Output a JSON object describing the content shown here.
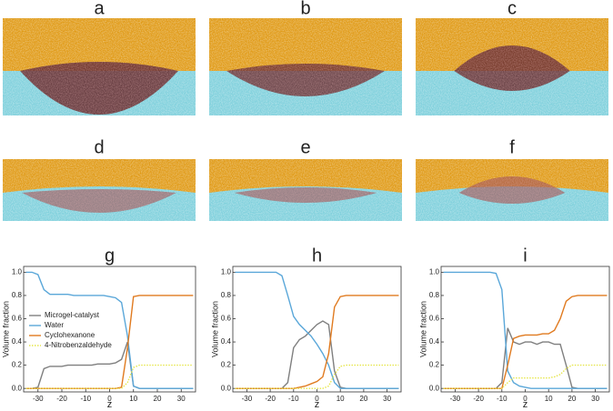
{
  "panels": {
    "labels": [
      "a",
      "b",
      "c",
      "d",
      "e",
      "f"
    ]
  },
  "chart_data": [
    {
      "type": "line",
      "title": "g",
      "xlabel": "z",
      "ylabel": "Volume fraction",
      "legend": "lower left",
      "x": [
        -35,
        -32.5,
        -30,
        -27.5,
        -25,
        -22.5,
        -20,
        -17.5,
        -15,
        -12.5,
        -10,
        -7.5,
        -5,
        -2.5,
        0,
        2.5,
        5,
        7.5,
        10,
        12.5,
        15,
        17.5,
        20,
        22.5,
        25,
        27.5,
        30,
        32.5,
        35
      ],
      "xlim": [
        -36,
        36
      ],
      "xticks": [
        -30,
        -20,
        -10,
        0,
        10,
        20,
        30
      ],
      "ylim": [
        -0.03,
        1.05
      ],
      "yticks": [
        {
          "value": 0,
          "label": "0.0"
        },
        0.2,
        0.4,
        0.6,
        0.8,
        {
          "value": 1,
          "label": "1.0"
        }
      ],
      "series": [
        {
          "name": "Microgel-catalyst",
          "color": "#7f7f7f",
          "style": "solid",
          "values": [
            0,
            0,
            0.01,
            0.17,
            0.19,
            0.19,
            0.19,
            0.2,
            0.2,
            0.2,
            0.2,
            0.2,
            0.21,
            0.21,
            0.21,
            0.22,
            0.25,
            0.4,
            0.02,
            0,
            0,
            0,
            0,
            0,
            0,
            0,
            0,
            0,
            0
          ]
        },
        {
          "name": "Water",
          "color": "#5aa7d9",
          "style": "solid",
          "values": [
            1,
            1,
            0.98,
            0.85,
            0.81,
            0.81,
            0.81,
            0.81,
            0.8,
            0.8,
            0.8,
            0.8,
            0.8,
            0.8,
            0.79,
            0.78,
            0.74,
            0.45,
            0.02,
            0,
            0,
            0,
            0,
            0,
            0,
            0,
            0,
            0,
            0
          ]
        },
        {
          "name": "Cyclohexanone",
          "color": "#e07a1f",
          "style": "solid",
          "values": [
            0,
            0,
            0,
            0,
            0,
            0,
            0,
            0,
            0,
            0,
            0,
            0,
            0,
            0,
            0,
            0,
            0.01,
            0.35,
            0.79,
            0.8,
            0.8,
            0.8,
            0.8,
            0.8,
            0.8,
            0.8,
            0.8,
            0.8,
            0.8
          ]
        },
        {
          "name": "4-Nitrobenzaldehyde",
          "color": "#e6e64a",
          "style": "dotted",
          "values": [
            0,
            0,
            0,
            0,
            0,
            0,
            0,
            0,
            0,
            0,
            0,
            0,
            0,
            0,
            0,
            0,
            0,
            0.05,
            0.18,
            0.2,
            0.2,
            0.2,
            0.2,
            0.2,
            0.2,
            0.2,
            0.2,
            0.2,
            0.2
          ]
        }
      ]
    },
    {
      "type": "line",
      "title": "h",
      "xlabel": "z",
      "ylabel": "Volume fraction",
      "x": [
        -35,
        -32.5,
        -30,
        -27.5,
        -25,
        -22.5,
        -20,
        -17.5,
        -15,
        -12.5,
        -10,
        -7.5,
        -5,
        -2.5,
        0,
        2.5,
        5,
        7.5,
        10,
        12.5,
        15,
        17.5,
        20,
        22.5,
        25,
        27.5,
        30,
        32.5,
        35
      ],
      "xlim": [
        -36,
        36
      ],
      "xticks": [
        -30,
        -20,
        -10,
        0,
        10,
        20,
        30
      ],
      "ylim": [
        -0.03,
        1.05
      ],
      "yticks": [
        {
          "value": 0,
          "label": "0.0"
        },
        0.2,
        0.4,
        0.6,
        0.8,
        {
          "value": 1,
          "label": "1.0"
        }
      ],
      "series": [
        {
          "color": "#7f7f7f",
          "style": "solid",
          "values": [
            0,
            0,
            0,
            0,
            0,
            0,
            0,
            0,
            0,
            0.05,
            0.35,
            0.42,
            0.45,
            0.5,
            0.55,
            0.58,
            0.55,
            0.15,
            0.01,
            0,
            0,
            0,
            0,
            0,
            0,
            0,
            0,
            0,
            0
          ]
        },
        {
          "color": "#5aa7d9",
          "style": "solid",
          "values": [
            1,
            1,
            1,
            1,
            1,
            1,
            1,
            1,
            0.97,
            0.8,
            0.62,
            0.55,
            0.5,
            0.45,
            0.38,
            0.3,
            0.2,
            0.05,
            0,
            0,
            0,
            0,
            0,
            0,
            0,
            0,
            0,
            0,
            0
          ]
        },
        {
          "color": "#e07a1f",
          "style": "solid",
          "values": [
            0,
            0,
            0,
            0,
            0,
            0,
            0,
            0,
            0,
            0,
            0,
            0.01,
            0.02,
            0.04,
            0.06,
            0.1,
            0.3,
            0.7,
            0.79,
            0.8,
            0.8,
            0.8,
            0.8,
            0.8,
            0.8,
            0.8,
            0.8,
            0.8,
            0.8
          ]
        },
        {
          "color": "#e6e64a",
          "style": "dotted",
          "values": [
            0,
            0,
            0,
            0,
            0,
            0,
            0,
            0,
            0,
            0,
            0,
            0,
            0,
            0,
            0,
            0,
            0.02,
            0.12,
            0.19,
            0.2,
            0.2,
            0.2,
            0.2,
            0.2,
            0.2,
            0.2,
            0.2,
            0.2,
            0.2
          ]
        }
      ]
    },
    {
      "type": "line",
      "title": "i",
      "xlabel": "z",
      "ylabel": "Volume fraction",
      "x": [
        -35,
        -32.5,
        -30,
        -27.5,
        -25,
        -22.5,
        -20,
        -17.5,
        -15,
        -12.5,
        -10,
        -7.5,
        -5,
        -2.5,
        0,
        2.5,
        5,
        7.5,
        10,
        12.5,
        15,
        17.5,
        20,
        22.5,
        25,
        27.5,
        30,
        32.5,
        35
      ],
      "xlim": [
        -36,
        36
      ],
      "xticks": [
        -30,
        -20,
        -10,
        0,
        10,
        20,
        30
      ],
      "ylim": [
        -0.03,
        1.05
      ],
      "yticks": [
        {
          "value": 0,
          "label": "0.0"
        },
        0.2,
        0.4,
        0.6,
        0.8,
        {
          "value": 1,
          "label": "1.0"
        }
      ],
      "series": [
        {
          "color": "#7f7f7f",
          "style": "solid",
          "values": [
            0,
            0,
            0,
            0,
            0,
            0,
            0,
            0,
            0,
            0,
            0.05,
            0.52,
            0.4,
            0.38,
            0.4,
            0.4,
            0.38,
            0.4,
            0.4,
            0.38,
            0.38,
            0.2,
            0.01,
            0,
            0,
            0,
            0,
            0,
            0
          ]
        },
        {
          "color": "#5aa7d9",
          "style": "solid",
          "values": [
            1,
            1,
            1,
            1,
            1,
            1,
            1,
            1,
            1,
            0.99,
            0.85,
            0.15,
            0.05,
            0.02,
            0.01,
            0,
            0,
            0,
            0,
            0,
            0,
            0,
            0,
            0,
            0,
            0,
            0,
            0,
            0
          ]
        },
        {
          "color": "#e07a1f",
          "style": "solid",
          "values": [
            0,
            0,
            0,
            0,
            0,
            0,
            0,
            0,
            0,
            0,
            0,
            0.2,
            0.43,
            0.45,
            0.46,
            0.46,
            0.46,
            0.47,
            0.47,
            0.5,
            0.6,
            0.75,
            0.79,
            0.8,
            0.8,
            0.8,
            0.8,
            0.8,
            0.8
          ]
        },
        {
          "color": "#e6e64a",
          "style": "dotted",
          "values": [
            0,
            0,
            0,
            0,
            0,
            0,
            0,
            0,
            0,
            0,
            0,
            0.05,
            0.09,
            0.09,
            0.09,
            0.09,
            0.09,
            0.09,
            0.09,
            0.1,
            0.12,
            0.17,
            0.2,
            0.2,
            0.2,
            0.2,
            0.2,
            0.2,
            0.2
          ]
        }
      ]
    }
  ]
}
